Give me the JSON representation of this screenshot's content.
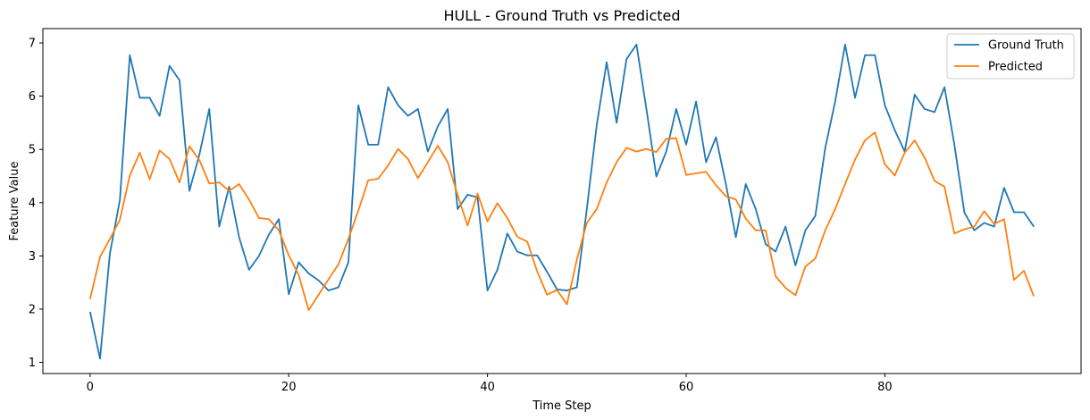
{
  "chart_data": {
    "type": "line",
    "title": "HULL - Ground Truth vs Predicted",
    "xlabel": "Time Step",
    "ylabel": "Feature Value",
    "xlim": [
      -4.75,
      99.75
    ],
    "ylim": [
      0.79,
      7.27
    ],
    "xticks": [
      0,
      20,
      40,
      60,
      80
    ],
    "yticks": [
      1,
      2,
      3,
      4,
      5,
      6,
      7
    ],
    "grid": false,
    "legend_position": "upper right",
    "series": [
      {
        "name": "Ground Truth",
        "color": "#1f77b4",
        "values": [
          1.95,
          1.07,
          3.05,
          4.05,
          6.77,
          5.97,
          5.97,
          5.63,
          6.57,
          6.3,
          4.22,
          4.9,
          5.76,
          3.55,
          4.3,
          3.35,
          2.74,
          3.0,
          3.4,
          3.69,
          2.28,
          2.88,
          2.67,
          2.54,
          2.35,
          2.41,
          2.88,
          5.83,
          5.09,
          5.09,
          6.17,
          5.83,
          5.63,
          5.76,
          4.96,
          5.43,
          5.76,
          3.88,
          4.15,
          4.1,
          2.35,
          2.74,
          3.42,
          3.08,
          3.01,
          3.01,
          2.7,
          2.37,
          2.35,
          2.41,
          3.88,
          5.46,
          6.64,
          5.5,
          6.7,
          6.97,
          5.76,
          4.49,
          4.96,
          5.76,
          5.09,
          5.9,
          4.76,
          5.23,
          4.35,
          3.35,
          4.35,
          3.88,
          3.22,
          3.08,
          3.55,
          2.82,
          3.48,
          3.75,
          5.03,
          5.9,
          6.97,
          5.97,
          6.77,
          6.77,
          5.83,
          5.36,
          4.96,
          6.03,
          5.76,
          5.7,
          6.17,
          5.09,
          3.82,
          3.48,
          3.62,
          3.55,
          4.28,
          3.82,
          3.82,
          3.55
        ]
      },
      {
        "name": "Predicted",
        "color": "#ff7f0e",
        "values": [
          2.19,
          2.98,
          3.32,
          3.68,
          4.51,
          4.94,
          4.44,
          4.98,
          4.82,
          4.38,
          5.06,
          4.8,
          4.36,
          4.38,
          4.22,
          4.35,
          4.06,
          3.71,
          3.69,
          3.48,
          3.01,
          2.64,
          1.98,
          2.27,
          2.56,
          2.84,
          3.32,
          3.85,
          4.42,
          4.45,
          4.7,
          5.01,
          4.82,
          4.46,
          4.76,
          5.07,
          4.76,
          4.14,
          3.57,
          4.17,
          3.65,
          3.99,
          3.71,
          3.36,
          3.27,
          2.71,
          2.27,
          2.36,
          2.09,
          2.93,
          3.62,
          3.88,
          4.38,
          4.76,
          5.03,
          4.96,
          5.01,
          4.95,
          5.2,
          5.21,
          4.52,
          4.55,
          4.58,
          4.33,
          4.12,
          4.06,
          3.7,
          3.48,
          3.48,
          2.62,
          2.4,
          2.26,
          2.8,
          2.95,
          3.48,
          3.88,
          4.35,
          4.81,
          5.17,
          5.32,
          4.72,
          4.51,
          4.94,
          5.17,
          4.85,
          4.41,
          4.3,
          3.42,
          3.5,
          3.55,
          3.84,
          3.6,
          3.69,
          2.55,
          2.72,
          2.24
        ]
      }
    ]
  }
}
